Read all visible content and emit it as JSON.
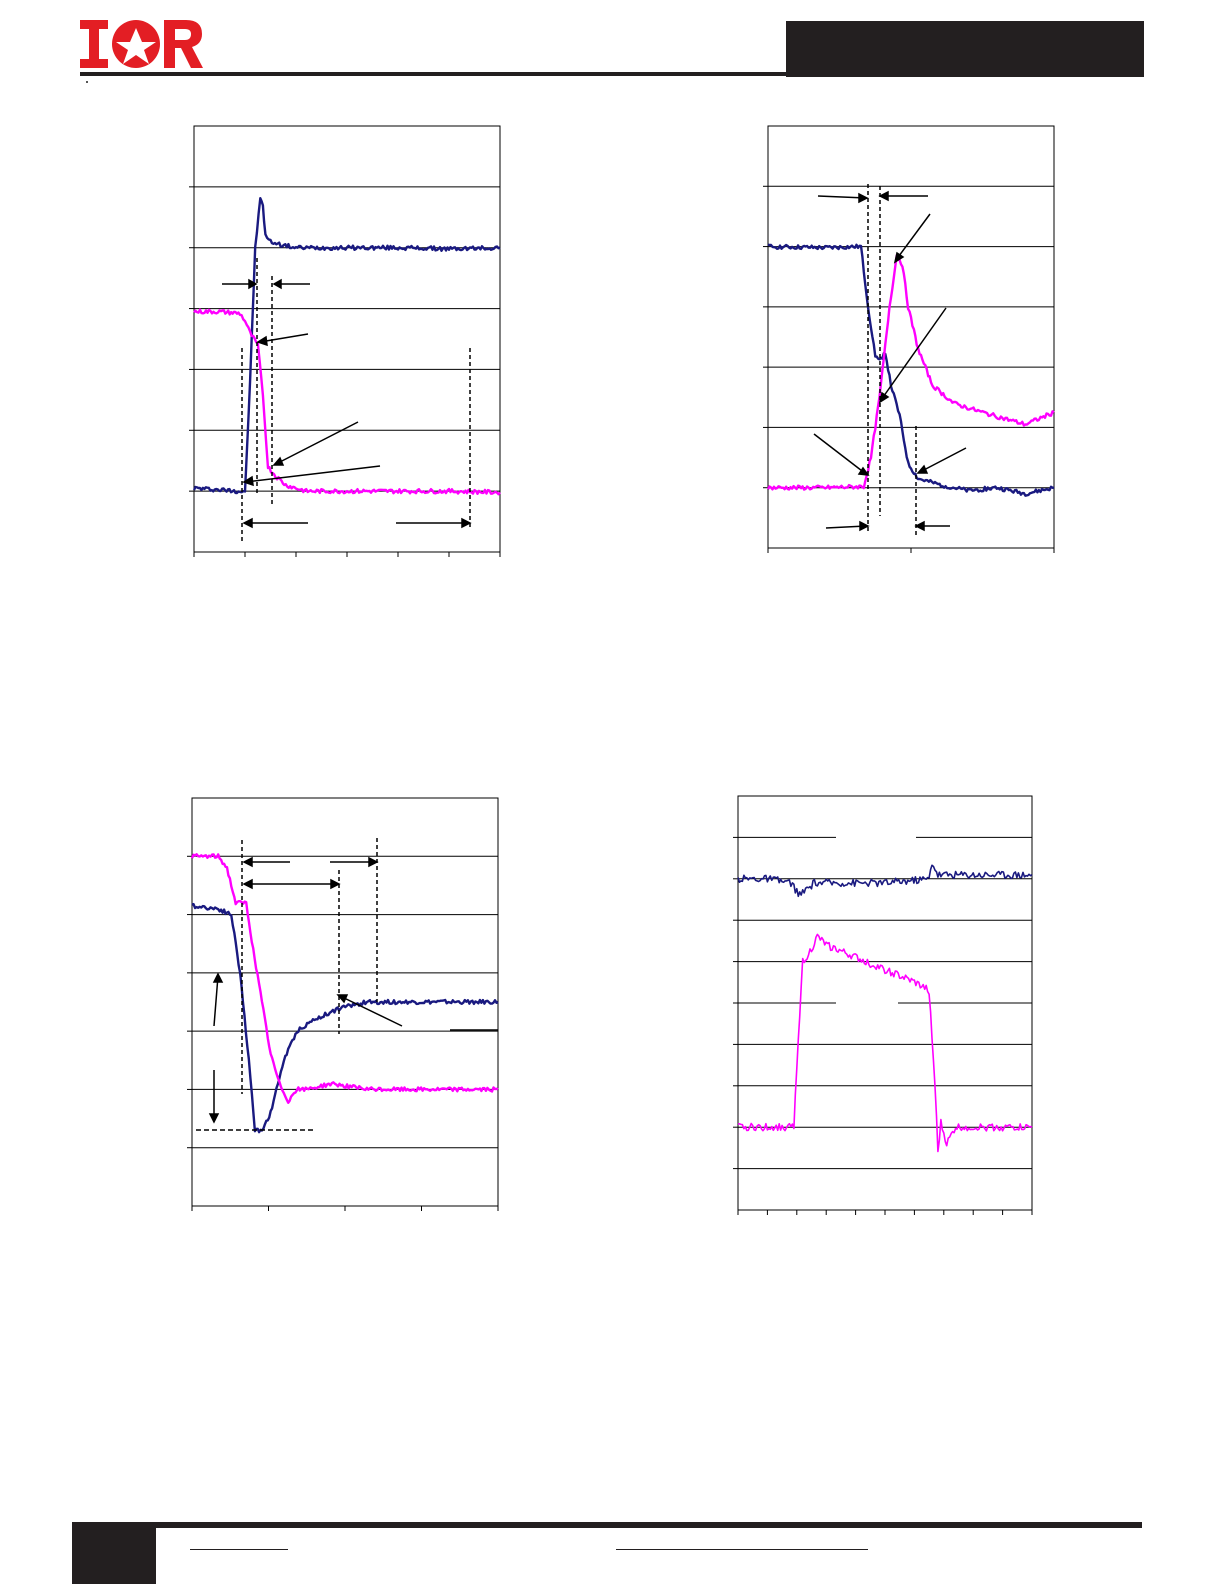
{
  "page": {
    "logo_name": "ior-logo",
    "logo_text": "IOR",
    "colors": {
      "brand_red": "#e31e24",
      "dark_bar": "#231f20",
      "trace_blue": "#1a1a80",
      "trace_magenta": "#ff00ff"
    }
  },
  "chart_data": [
    {
      "type": "line",
      "title": "",
      "xlim": [
        0,
        6
      ],
      "ylim": [
        0,
        7
      ],
      "grid": "horizontal",
      "series": [
        {
          "color": "#1a1a80",
          "x": [
            0,
            0.9,
            1.0,
            1.1,
            1.2,
            1.3,
            1.35,
            1.4,
            1.5,
            1.7,
            2.0,
            3.0,
            4.0,
            5.0,
            6.0
          ],
          "y": [
            1.05,
            1.0,
            1.0,
            2.8,
            5.0,
            5.8,
            5.7,
            5.2,
            5.1,
            5.05,
            5.0,
            5.0,
            5.0,
            4.98,
            5.0
          ]
        },
        {
          "color": "#ff00ff",
          "x": [
            0,
            0.5,
            0.9,
            1.0,
            1.1,
            1.25,
            1.35,
            1.45,
            1.6,
            1.8,
            2.2,
            3.0,
            4.0,
            5.0,
            6.0
          ],
          "y": [
            3.95,
            3.95,
            3.92,
            3.8,
            3.6,
            3.4,
            2.6,
            1.4,
            1.25,
            1.1,
            1.0,
            1.0,
            1.0,
            1.0,
            0.98
          ]
        }
      ]
    },
    {
      "type": "line",
      "title": "",
      "xlim": [
        0,
        2
      ],
      "ylim": [
        0,
        7
      ],
      "grid": "horizontal",
      "series": [
        {
          "color": "#1a1a80",
          "x": [
            0,
            0.4,
            0.65,
            0.7,
            0.75,
            0.78,
            0.82,
            0.86,
            0.92,
            0.98,
            1.05,
            1.2,
            1.4,
            1.6,
            1.8,
            2.0
          ],
          "y": [
            5.0,
            4.98,
            5.0,
            4.0,
            3.2,
            3.1,
            3.25,
            2.7,
            2.2,
            1.4,
            1.15,
            1.05,
            0.95,
            1.0,
            0.9,
            1.0
          ]
        },
        {
          "color": "#ff00ff",
          "x": [
            0,
            0.4,
            0.67,
            0.72,
            0.78,
            0.85,
            0.9,
            0.94,
            0.98,
            1.05,
            1.15,
            1.3,
            1.5,
            1.65,
            1.8,
            2.0
          ],
          "y": [
            1.0,
            1.0,
            1.02,
            1.5,
            2.5,
            4.0,
            4.85,
            4.7,
            4.0,
            3.3,
            2.7,
            2.4,
            2.25,
            2.15,
            2.05,
            2.25
          ]
        }
      ]
    },
    {
      "type": "line",
      "title": "",
      "xlim": [
        0,
        3.5
      ],
      "ylim": [
        0,
        7
      ],
      "grid": "horizontal",
      "series": [
        {
          "color": "#1a1a80",
          "x": [
            0,
            0.3,
            0.45,
            0.55,
            0.65,
            0.72,
            0.8,
            0.9,
            1.05,
            1.2,
            1.4,
            1.7,
            2.0,
            2.5,
            3.0,
            3.5
          ],
          "y": [
            5.15,
            5.1,
            5.0,
            4.0,
            2.5,
            1.3,
            1.3,
            1.6,
            2.5,
            3.0,
            3.2,
            3.4,
            3.5,
            3.5,
            3.5,
            3.5
          ]
        },
        {
          "color": "#ff00ff",
          "x": [
            0,
            0.3,
            0.4,
            0.5,
            0.62,
            0.7,
            0.8,
            0.9,
            1.0,
            1.1,
            1.2,
            1.3,
            1.6,
            2.0,
            2.5,
            3.0,
            3.5
          ],
          "y": [
            6.0,
            6.0,
            5.8,
            5.2,
            5.2,
            4.4,
            3.5,
            2.6,
            2.1,
            1.8,
            2.0,
            2.0,
            2.1,
            2.0,
            2.0,
            2.0,
            2.0
          ]
        }
      ]
    },
    {
      "type": "line",
      "title": "",
      "xlim": [
        0,
        10
      ],
      "ylim": [
        0,
        10
      ],
      "grid": "horizontal",
      "series": [
        {
          "color": "#1a1a80",
          "x": [
            0,
            1,
            1.8,
            2.1,
            2.6,
            3.5,
            5,
            6.5,
            6.6,
            6.8,
            8,
            10
          ],
          "y": [
            8.0,
            8.0,
            7.9,
            7.6,
            7.9,
            7.9,
            7.9,
            8.0,
            8.4,
            8.1,
            8.1,
            8.1
          ]
        },
        {
          "color": "#ff00ff",
          "x": [
            0,
            1,
            1.9,
            2.0,
            2.2,
            2.5,
            2.7,
            3,
            4,
            5,
            6,
            6.5,
            6.7,
            6.8,
            6.9,
            7.1,
            7.4,
            8,
            9,
            10
          ],
          "y": [
            2.0,
            2.0,
            2.0,
            3.5,
            6.0,
            6.3,
            6.6,
            6.4,
            6.1,
            5.8,
            5.5,
            5.3,
            3.0,
            1.4,
            2.1,
            1.6,
            2.0,
            2.0,
            2.0,
            2.0
          ]
        }
      ]
    }
  ]
}
